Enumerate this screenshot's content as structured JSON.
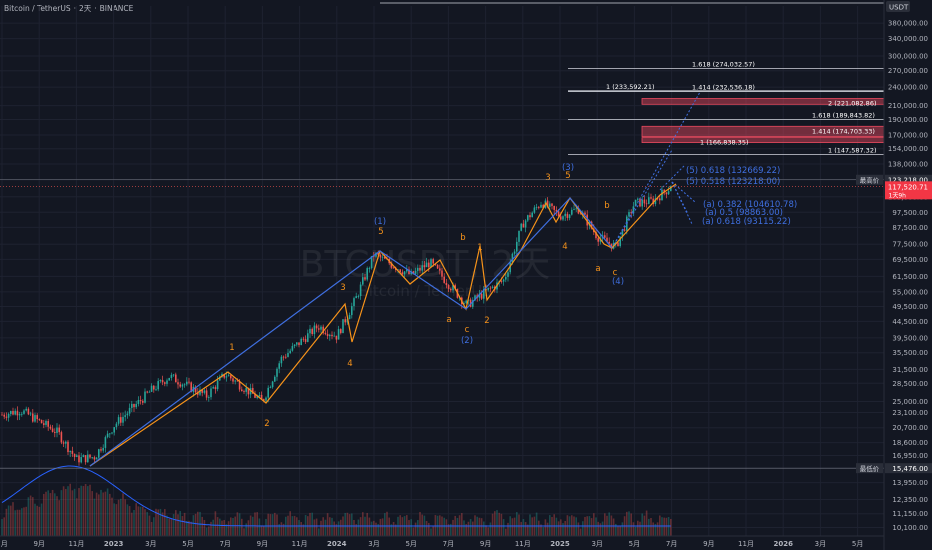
{
  "header": {
    "symbol": "Bitcoin / TetherUS",
    "sep1": "·",
    "interval": "2天",
    "sep2": "·",
    "exchange": "BINANCE"
  },
  "watermark": {
    "main": "BTCUSDT, 2天",
    "sub": "Bitcoin / TetherUS"
  },
  "axis": {
    "currency": "USDT",
    "y_scale": "log",
    "y_ticks": [
      "380,000.00",
      "340,000.00",
      "300,000.00",
      "270,000.00",
      "240,000.00",
      "210,000.00",
      "190,000.00",
      "170,000.00",
      "154,000.00",
      "138,000.00",
      "123,218.00",
      "109,000.00",
      "97,500.00",
      "87,500.00",
      "77,500.00",
      "69,500.00",
      "61,500.00",
      "55,000.00",
      "49,500.00",
      "44,500.00",
      "39,500.00",
      "35,500.00",
      "31,500.00",
      "28,500.00",
      "25,000.00",
      "23,100.00",
      "20,700.00",
      "18,600.00",
      "16,950.00",
      "15,476.00",
      "13,950.00",
      "12,350.00",
      "11,150.00",
      "10,100.00"
    ],
    "x_ticks": [
      "7月",
      "9月",
      "11月",
      "2023",
      "3月",
      "5月",
      "7月",
      "9月",
      "11月",
      "2024",
      "3月",
      "5月",
      "7月",
      "9月",
      "11月",
      "2025",
      "3月",
      "5月",
      "7月",
      "9月",
      "11月",
      "2026",
      "3月",
      "5月"
    ]
  },
  "price_labels": {
    "high_title": "最高价",
    "high_value": "123,218.00",
    "current_value": "117,520.71",
    "current_sub": "1天9h",
    "low_title": "最低价",
    "low_value": "15,476.00"
  },
  "fib_levels": [
    {
      "label": "1.618 (274,032.57)",
      "price": 274032.57,
      "color": "#ffffff"
    },
    {
      "label": "1 (233,592.21)",
      "price": 233592.21,
      "color": "#ffffff"
    },
    {
      "label": "1.414 (232,536.18)",
      "price": 232536.18,
      "color": "#ffffff"
    },
    {
      "label": "1.618 (189,843.82)",
      "price": 189843.82,
      "color": "#ffffff"
    },
    {
      "label": "1 (147,587.32)",
      "price": 147587.32,
      "color": "#ffffff"
    }
  ],
  "zones": [
    {
      "label": "2 (221,082.86)",
      "top": 221082.86,
      "bottom": 212000,
      "color": "#e84a5f"
    },
    {
      "label": "1.414 (174,703.33)",
      "top": 181000,
      "bottom": 168000,
      "color": "#e84a5f"
    },
    {
      "label": "1 (166,838.35)",
      "top": 166838.35,
      "bottom": 161000,
      "color": "#e84a5f"
    }
  ],
  "targets": [
    {
      "label": "(5) 0.618 (132669.22)",
      "price": 132669.22
    },
    {
      "label": "(5) 0.518 (123218.00)",
      "price": 123218.0
    },
    {
      "label": "(a) 0.382 (104610.78)",
      "price": 104610.78
    },
    {
      "label": "(a) 0.5 (98863.00)",
      "price": 98863.0
    },
    {
      "label": "(a) 0.618 (93115.22)",
      "price": 93115.22
    }
  ],
  "wave_labels": [
    {
      "text": "1",
      "color": "orange"
    },
    {
      "text": "2",
      "color": "orange"
    },
    {
      "text": "3",
      "color": "orange"
    },
    {
      "text": "4",
      "color": "orange"
    },
    {
      "text": "5",
      "color": "orange"
    },
    {
      "text": "(1)",
      "color": "blue"
    },
    {
      "text": "a",
      "color": "orange"
    },
    {
      "text": "b",
      "color": "orange"
    },
    {
      "text": "c",
      "color": "orange"
    },
    {
      "text": "(2)",
      "color": "blue"
    },
    {
      "text": "1",
      "color": "orange"
    },
    {
      "text": "2",
      "color": "orange"
    },
    {
      "text": "3",
      "color": "orange"
    },
    {
      "text": "4",
      "color": "orange"
    },
    {
      "text": "5",
      "color": "orange"
    },
    {
      "text": "(3)",
      "color": "blue"
    },
    {
      "text": "a",
      "color": "orange"
    },
    {
      "text": "b",
      "color": "orange"
    },
    {
      "text": "c",
      "color": "orange"
    },
    {
      "text": "(4)",
      "color": "blue"
    }
  ],
  "colors": {
    "background": "#131722",
    "grid": "#1e2230",
    "up": "#26a69a",
    "down": "#ef5350",
    "wave_blue": "#3f6fe0",
    "wave_orange": "#f7931a",
    "text": "#b2b5be",
    "volume_line": "#2962ff"
  },
  "chart_data": {
    "type": "candlestick",
    "title": "Bitcoin / TetherUS · 2天 · BINANCE",
    "y_scale": "log",
    "ylim": [
      9500,
      430000
    ],
    "x_range": [
      "2022-06",
      "2026-06"
    ],
    "price_path": [
      {
        "t": "2022-06",
        "price": 22000
      },
      {
        "t": "2022-08",
        "price": 23500
      },
      {
        "t": "2022-10",
        "price": 20000
      },
      {
        "t": "2022-11",
        "price": 16500
      },
      {
        "t": "2022-12",
        "price": 16800
      },
      {
        "t": "2023-01",
        "price": 21000
      },
      {
        "t": "2023-03",
        "price": 27000
      },
      {
        "t": "2023-04",
        "price": 30000
      },
      {
        "t": "2023-06",
        "price": 26000
      },
      {
        "t": "2023-07",
        "price": 30500
      },
      {
        "t": "2023-09",
        "price": 25000
      },
      {
        "t": "2023-10",
        "price": 34000
      },
      {
        "t": "2023-12",
        "price": 43000
      },
      {
        "t": "2024-01",
        "price": 40000
      },
      {
        "t": "2024-02",
        "price": 52000
      },
      {
        "t": "2024-03",
        "price": 72000
      },
      {
        "t": "2024-05",
        "price": 62000
      },
      {
        "t": "2024-06",
        "price": 68000
      },
      {
        "t": "2024-08",
        "price": 50000
      },
      {
        "t": "2024-09",
        "price": 55000
      },
      {
        "t": "2024-10",
        "price": 60000
      },
      {
        "t": "2024-11",
        "price": 90000
      },
      {
        "t": "2024-12",
        "price": 105000
      },
      {
        "t": "2025-01",
        "price": 95000
      },
      {
        "t": "2025-02",
        "price": 100000
      },
      {
        "t": "2025-03",
        "price": 82000
      },
      {
        "t": "2025-04",
        "price": 76000
      },
      {
        "t": "2025-05",
        "price": 104000
      },
      {
        "t": "2025-06",
        "price": 106000
      },
      {
        "t": "2025-07",
        "price": 117520.71
      }
    ],
    "highest": 123218.0,
    "lowest": 15476.0,
    "last": 117520.71
  }
}
